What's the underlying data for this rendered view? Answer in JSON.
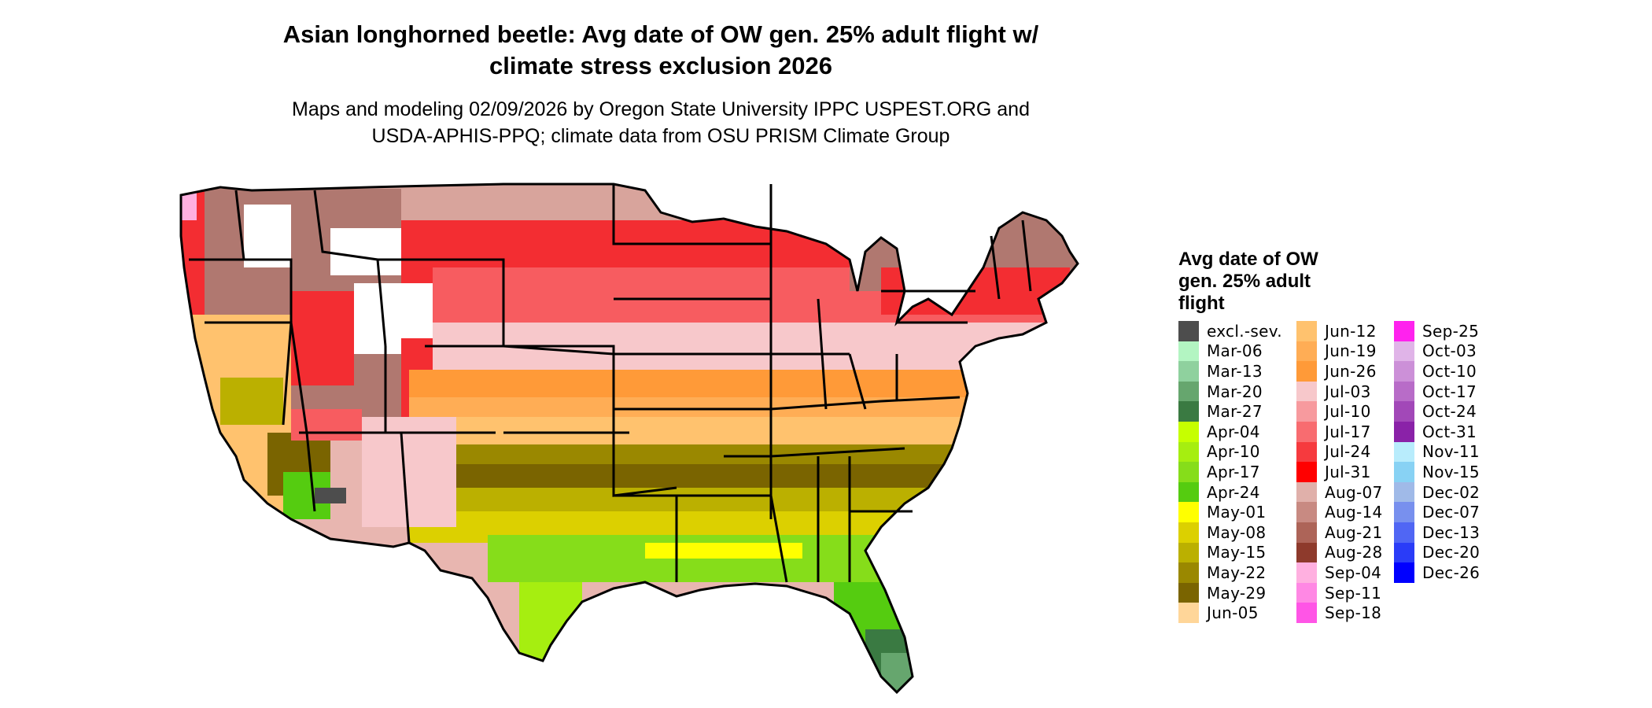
{
  "title": {
    "line1": "Asian longhorned beetle: Avg date of OW gen. 25% adult flight w/",
    "line2": "climate stress exclusion 2026"
  },
  "subtitle": {
    "line1": "Maps and modeling 02/09/2026 by Oregon State University IPPC USPEST.ORG and",
    "line2": "USDA-APHIS-PPQ; climate data from OSU PRISM Climate Group"
  },
  "map": {
    "region": "Contiguous United States",
    "features": "state boundaries"
  },
  "legend": {
    "title_line1": "Avg date of OW",
    "title_line2": "gen. 25% adult",
    "title_line3": "flight",
    "columns": [
      [
        {
          "label": "excl.-sev.",
          "color": "#4d4d4d"
        },
        {
          "label": "Mar-06",
          "color": "#b3f5c2"
        },
        {
          "label": "Mar-13",
          "color": "#8fd19e"
        },
        {
          "label": "Mar-20",
          "color": "#66a66e"
        },
        {
          "label": "Mar-27",
          "color": "#3a7a42"
        },
        {
          "label": "Apr-04",
          "color": "#c6ff00"
        },
        {
          "label": "Apr-10",
          "color": "#a6ee10"
        },
        {
          "label": "Apr-17",
          "color": "#86dd1a"
        },
        {
          "label": "Apr-24",
          "color": "#55cc10"
        },
        {
          "label": "May-01",
          "color": "#ffff00"
        },
        {
          "label": "May-08",
          "color": "#dcd000"
        },
        {
          "label": "May-15",
          "color": "#bbb000"
        },
        {
          "label": "May-22",
          "color": "#9a8800"
        },
        {
          "label": "May-29",
          "color": "#7a6400"
        },
        {
          "label": "Jun-05",
          "color": "#ffd699"
        }
      ],
      [
        {
          "label": "Jun-12",
          "color": "#ffc26e"
        },
        {
          "label": "Jun-19",
          "color": "#ffad55"
        },
        {
          "label": "Jun-26",
          "color": "#ff9a38"
        },
        {
          "label": "Jul-03",
          "color": "#f7c8cb"
        },
        {
          "label": "Jul-10",
          "color": "#f79a9e"
        },
        {
          "label": "Jul-17",
          "color": "#f86c70"
        },
        {
          "label": "Jul-24",
          "color": "#f63a3e"
        },
        {
          "label": "Jul-31",
          "color": "#ff0000"
        },
        {
          "label": "Aug-07",
          "color": "#e0b0aa"
        },
        {
          "label": "Aug-14",
          "color": "#c88a82"
        },
        {
          "label": "Aug-21",
          "color": "#ad6458"
        },
        {
          "label": "Aug-28",
          "color": "#8e3a2c"
        },
        {
          "label": "Sep-04",
          "color": "#ffb0e0"
        },
        {
          "label": "Sep-11",
          "color": "#ff88e4"
        },
        {
          "label": "Sep-18",
          "color": "#ff55e6"
        }
      ],
      [
        {
          "label": "Sep-25",
          "color": "#ff22ee"
        },
        {
          "label": "Oct-03",
          "color": "#e0b4e8"
        },
        {
          "label": "Oct-10",
          "color": "#cc90d8"
        },
        {
          "label": "Oct-17",
          "color": "#b86cc8"
        },
        {
          "label": "Oct-24",
          "color": "#a248b8"
        },
        {
          "label": "Oct-31",
          "color": "#8a22a8"
        },
        {
          "label": "Nov-11",
          "color": "#b8ecfc"
        },
        {
          "label": "Nov-15",
          "color": "#88d2f4"
        },
        {
          "label": "Dec-02",
          "color": "#a0bae8"
        },
        {
          "label": "Dec-07",
          "color": "#7890ee"
        },
        {
          "label": "Dec-13",
          "color": "#5066f4"
        },
        {
          "label": "Dec-20",
          "color": "#2a3cf8"
        },
        {
          "label": "Dec-26",
          "color": "#0000ff"
        }
      ]
    ]
  }
}
